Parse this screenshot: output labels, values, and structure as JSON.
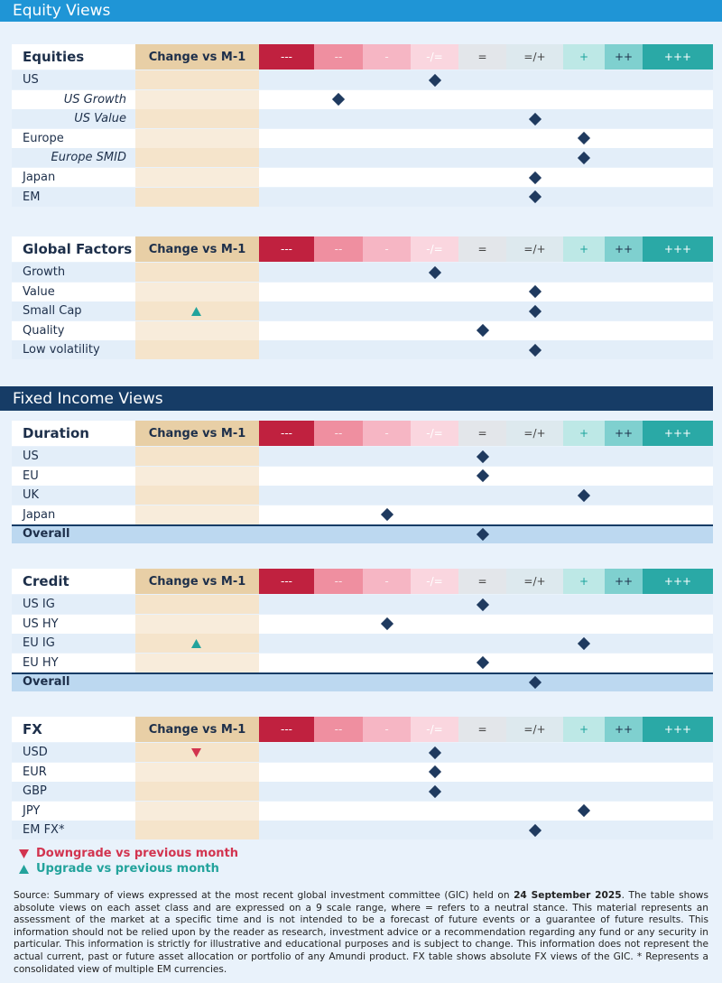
{
  "equity_banner": "Equity Views",
  "fixed_income_banner": "Fixed Income Views",
  "change_header": "Change vs M-1",
  "scale": [
    "---",
    "--",
    "-",
    "-/=",
    "=",
    "=/+",
    "+",
    "++",
    "+++"
  ],
  "tables": [
    {
      "title": "Equities",
      "rows": [
        {
          "label": "US",
          "view": "-/=",
          "change": null
        },
        {
          "label": "US Growth",
          "view": "--",
          "change": null,
          "sub": true
        },
        {
          "label": "US Value",
          "view": "=/+",
          "change": null,
          "sub": true
        },
        {
          "label": "Europe",
          "view": "+",
          "change": null
        },
        {
          "label": "Europe SMID",
          "view": "+",
          "change": null,
          "sub": true
        },
        {
          "label": "Japan",
          "view": "=/+",
          "change": null
        },
        {
          "label": "EM",
          "view": "=/+",
          "change": null
        }
      ]
    },
    {
      "title": "Global Factors",
      "rows": [
        {
          "label": "Growth",
          "view": "-/=",
          "change": null
        },
        {
          "label": "Value",
          "view": "=/+",
          "change": null
        },
        {
          "label": "Small Cap",
          "view": "=/+",
          "change": "up"
        },
        {
          "label": "Quality",
          "view": "=",
          "change": null
        },
        {
          "label": "Low volatility",
          "view": "=/+",
          "change": null
        }
      ]
    },
    {
      "title": "Duration",
      "rows": [
        {
          "label": "US",
          "view": "=",
          "change": null
        },
        {
          "label": "EU",
          "view": "=",
          "change": null
        },
        {
          "label": "UK",
          "view": "+",
          "change": null
        },
        {
          "label": "Japan",
          "view": "-",
          "change": null
        },
        {
          "label": "Overall",
          "view": "=",
          "change": null,
          "overall": true
        }
      ]
    },
    {
      "title": "Credit",
      "rows": [
        {
          "label": "US IG",
          "view": "=",
          "change": null
        },
        {
          "label": "US HY",
          "view": "-",
          "change": null
        },
        {
          "label": "EU IG",
          "view": "+",
          "change": "up"
        },
        {
          "label": "EU HY",
          "view": "=",
          "change": null
        },
        {
          "label": "Overall",
          "view": "=/+",
          "change": null,
          "overall": true
        }
      ]
    },
    {
      "title": "FX",
      "rows": [
        {
          "label": "USD",
          "view": "-/=",
          "change": "down"
        },
        {
          "label": "EUR",
          "view": "-/=",
          "change": null
        },
        {
          "label": "GBP",
          "view": "-/=",
          "change": null
        },
        {
          "label": "JPY",
          "view": "+",
          "change": null
        },
        {
          "label": "EM FX*",
          "view": "=/+",
          "change": null
        }
      ]
    }
  ],
  "legend": {
    "down": "Downgrade vs previous month",
    "up": "Upgrade vs previous month"
  },
  "source": {
    "before": "Source: Summary of views expressed at the most recent global investment committee (GIC) held on ",
    "date": "24 September 2025",
    "after": ". The table shows absolute views on each asset class and are expressed on a 9 scale range, where = refers to a neutral stance. This material represents an assessment of the market at a specific time and is not intended to be a forecast of future events or a guarantee of future results. This information should not be relied upon by the reader as research, investment advice or a recommendation regarding any fund or any security in particular. This information is strictly for illustrative and educational purposes and is subject to change. This information does not represent the actual current, past or future asset allocation or portfolio of any Amundi product. FX table shows absolute FX views of the GIC. * Represents a consolidated view of multiple EM currencies."
  }
}
